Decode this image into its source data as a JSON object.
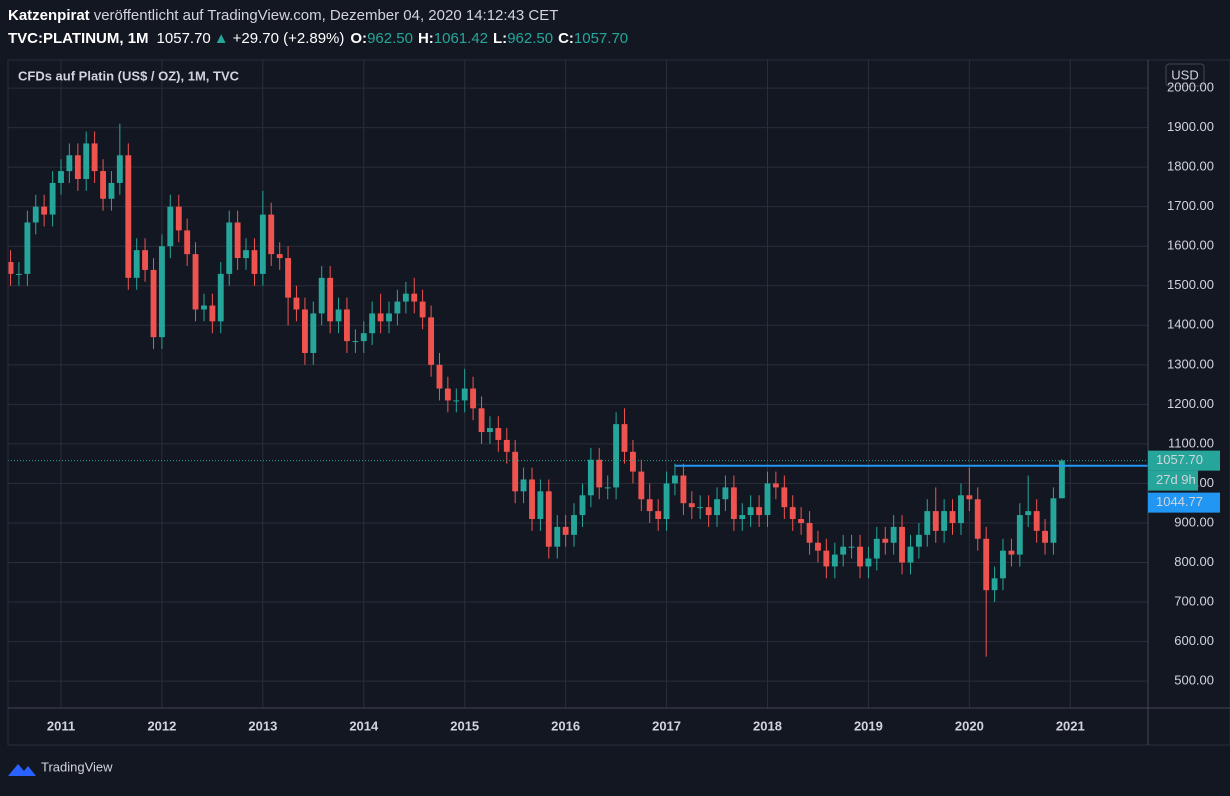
{
  "header": {
    "author": "Katzenpirat",
    "published": "veröffentlicht auf TradingView.com, Dezember 04, 2020 14:12:43 CET",
    "symbol": "TVC:PLATINUM, 1M",
    "price": "1057.70",
    "arrow": "▲",
    "change": "+29.70 (+2.89%)",
    "o_label": "O:",
    "o": "962.50",
    "h_label": "H:",
    "h": "1061.42",
    "l_label": "L:",
    "l": "962.50",
    "c_label": "C:",
    "c": "1057.70"
  },
  "footer": {
    "brand": "TradingView"
  },
  "chart_data": {
    "type": "candlestick",
    "title": "CFDs auf Platin (US$ / OZ), 1M, TVC",
    "currency": "USD",
    "up_color": "#26a69a",
    "down_color": "#ef5350",
    "grid": true,
    "xlim": [
      2010.475,
      2021.77
    ],
    "xticks": [
      2011,
      2012,
      2013,
      2014,
      2015,
      2016,
      2017,
      2018,
      2019,
      2020,
      2021
    ],
    "ylim": [
      432,
      2071
    ],
    "yticks": [
      {
        "value": 500,
        "label": "500.00"
      },
      {
        "value": 600,
        "label": "600.00"
      },
      {
        "value": 700,
        "label": "700.00"
      },
      {
        "value": 800,
        "label": "800.00"
      },
      {
        "value": 900,
        "label": "900.00"
      },
      {
        "value": 1000,
        "label": "1000.00"
      },
      {
        "value": 1100,
        "label": "1100.00"
      },
      {
        "value": 1200,
        "label": "1200.00"
      },
      {
        "value": 1300,
        "label": "1300.00"
      },
      {
        "value": 1400,
        "label": "1400.00"
      },
      {
        "value": 1500,
        "label": "1500.00"
      },
      {
        "value": 1600,
        "label": "1600.00"
      },
      {
        "value": 1700,
        "label": "1700.00"
      },
      {
        "value": 1800,
        "label": "1800.00"
      },
      {
        "value": 1900,
        "label": "1900.00"
      },
      {
        "value": 2000,
        "label": "2000.00"
      }
    ],
    "x": [
      2010.5,
      2010.583,
      2010.667,
      2010.75,
      2010.833,
      2010.917,
      2011,
      2011.083,
      2011.167,
      2011.25,
      2011.333,
      2011.417,
      2011.5,
      2011.583,
      2011.667,
      2011.75,
      2011.833,
      2011.917,
      2012,
      2012.083,
      2012.167,
      2012.25,
      2012.333,
      2012.417,
      2012.5,
      2012.583,
      2012.667,
      2012.75,
      2012.833,
      2012.917,
      2013,
      2013.083,
      2013.167,
      2013.25,
      2013.333,
      2013.417,
      2013.5,
      2013.583,
      2013.667,
      2013.75,
      2013.833,
      2013.917,
      2014,
      2014.083,
      2014.167,
      2014.25,
      2014.333,
      2014.417,
      2014.5,
      2014.583,
      2014.667,
      2014.75,
      2014.833,
      2014.917,
      2015,
      2015.083,
      2015.167,
      2015.25,
      2015.333,
      2015.417,
      2015.5,
      2015.583,
      2015.667,
      2015.75,
      2015.833,
      2015.917,
      2016,
      2016.083,
      2016.167,
      2016.25,
      2016.333,
      2016.417,
      2016.5,
      2016.583,
      2016.667,
      2016.75,
      2016.833,
      2016.917,
      2017,
      2017.083,
      2017.167,
      2017.25,
      2017.333,
      2017.417,
      2017.5,
      2017.583,
      2017.667,
      2017.75,
      2017.833,
      2017.917,
      2018,
      2018.083,
      2018.167,
      2018.25,
      2018.333,
      2018.417,
      2018.5,
      2018.583,
      2018.667,
      2018.75,
      2018.833,
      2018.917,
      2019,
      2019.083,
      2019.167,
      2019.25,
      2019.333,
      2019.417,
      2019.5,
      2019.583,
      2019.667,
      2019.75,
      2019.833,
      2019.917,
      2020,
      2020.083,
      2020.167,
      2020.25,
      2020.333,
      2020.417,
      2020.5,
      2020.583,
      2020.667,
      2020.75,
      2020.833,
      2020.917
    ],
    "open": [
      1560,
      1530,
      1530,
      1660,
      1700,
      1680,
      1760,
      1790,
      1830,
      1770,
      1860,
      1790,
      1720,
      1760,
      1830,
      1520,
      1590,
      1540,
      1370,
      1600,
      1700,
      1640,
      1580,
      1440,
      1450,
      1410,
      1530,
      1660,
      1570,
      1590,
      1530,
      1680,
      1580,
      1570,
      1470,
      1440,
      1330,
      1430,
      1520,
      1410,
      1440,
      1360,
      1360,
      1380,
      1430,
      1410,
      1430,
      1460,
      1480,
      1460,
      1420,
      1300,
      1240,
      1210,
      1210,
      1240,
      1190,
      1130,
      1140,
      1110,
      1080,
      980,
      1010,
      910,
      980,
      840,
      890,
      870,
      920,
      970,
      1060,
      990,
      990,
      1150,
      1080,
      1030,
      960,
      930,
      910,
      1000,
      1020,
      950,
      940,
      940,
      920,
      960,
      990,
      910,
      920,
      940,
      920,
      1000,
      990,
      940,
      910,
      900,
      850,
      830,
      790,
      820,
      840,
      840,
      790,
      810,
      860,
      850,
      890,
      800,
      840,
      870,
      930,
      880,
      930,
      900,
      970,
      960,
      860,
      730,
      760,
      830,
      820,
      920,
      930,
      880,
      850,
      962.5
    ],
    "high": [
      1590,
      1560,
      1690,
      1730,
      1730,
      1790,
      1820,
      1860,
      1860,
      1890,
      1890,
      1820,
      1790,
      1910,
      1860,
      1620,
      1620,
      1570,
      1630,
      1730,
      1730,
      1670,
      1610,
      1480,
      1480,
      1560,
      1690,
      1690,
      1620,
      1620,
      1740,
      1710,
      1610,
      1600,
      1500,
      1470,
      1460,
      1550,
      1550,
      1470,
      1470,
      1390,
      1410,
      1460,
      1480,
      1460,
      1490,
      1510,
      1520,
      1490,
      1450,
      1330,
      1270,
      1240,
      1290,
      1270,
      1220,
      1170,
      1170,
      1140,
      1110,
      1040,
      1040,
      1010,
      1010,
      920,
      920,
      950,
      1000,
      1090,
      1090,
      1020,
      1180,
      1190,
      1110,
      1060,
      1000,
      960,
      1030,
      1050,
      1050,
      980,
      970,
      970,
      990,
      1020,
      1020,
      950,
      970,
      970,
      1030,
      1030,
      1020,
      970,
      940,
      930,
      880,
      860,
      850,
      870,
      870,
      870,
      840,
      890,
      890,
      920,
      920,
      870,
      900,
      960,
      990,
      960,
      960,
      1000,
      1040,
      990,
      890,
      790,
      860,
      860,
      950,
      1020,
      960,
      910,
      990,
      1061.42
    ],
    "low": [
      1500,
      1500,
      1500,
      1630,
      1650,
      1650,
      1730,
      1760,
      1740,
      1740,
      1760,
      1690,
      1690,
      1730,
      1490,
      1490,
      1510,
      1340,
      1340,
      1570,
      1610,
      1550,
      1410,
      1410,
      1380,
      1380,
      1500,
      1540,
      1540,
      1500,
      1500,
      1550,
      1540,
      1400,
      1410,
      1300,
      1300,
      1400,
      1380,
      1380,
      1330,
      1330,
      1330,
      1350,
      1380,
      1380,
      1400,
      1430,
      1430,
      1390,
      1270,
      1210,
      1180,
      1180,
      1180,
      1160,
      1100,
      1100,
      1080,
      1050,
      950,
      950,
      880,
      880,
      810,
      810,
      840,
      840,
      890,
      940,
      960,
      960,
      960,
      1050,
      1000,
      930,
      900,
      880,
      880,
      970,
      920,
      910,
      910,
      890,
      890,
      930,
      880,
      880,
      890,
      890,
      890,
      960,
      910,
      880,
      870,
      820,
      800,
      760,
      760,
      790,
      810,
      760,
      760,
      780,
      820,
      820,
      770,
      770,
      810,
      840,
      850,
      850,
      870,
      870,
      930,
      830,
      562,
      700,
      730,
      790,
      790,
      890,
      850,
      820,
      820,
      962.5
    ],
    "close": [
      1530,
      1530,
      1660,
      1700,
      1680,
      1760,
      1790,
      1830,
      1770,
      1860,
      1790,
      1720,
      1760,
      1830,
      1520,
      1590,
      1540,
      1370,
      1600,
      1700,
      1640,
      1580,
      1440,
      1450,
      1410,
      1530,
      1660,
      1570,
      1590,
      1530,
      1680,
      1580,
      1570,
      1470,
      1440,
      1330,
      1430,
      1520,
      1410,
      1440,
      1360,
      1360,
      1380,
      1430,
      1410,
      1430,
      1460,
      1480,
      1460,
      1420,
      1300,
      1240,
      1210,
      1210,
      1240,
      1190,
      1130,
      1140,
      1110,
      1080,
      980,
      1010,
      910,
      980,
      840,
      890,
      870,
      920,
      970,
      1060,
      990,
      990,
      1150,
      1080,
      1030,
      960,
      930,
      910,
      1000,
      1020,
      950,
      940,
      940,
      920,
      960,
      990,
      910,
      920,
      940,
      920,
      1000,
      990,
      940,
      910,
      900,
      850,
      830,
      790,
      820,
      840,
      840,
      790,
      810,
      860,
      850,
      890,
      800,
      840,
      870,
      930,
      880,
      930,
      900,
      970,
      960,
      860,
      730,
      760,
      830,
      820,
      920,
      930,
      880,
      850,
      962.5,
      1057.7
    ],
    "last_price": {
      "value": 1057.7,
      "label": "1057.70"
    },
    "countdown": "27d 9h",
    "hline": {
      "value": 1044.77,
      "label": "1044.77",
      "start": 2017.083,
      "color": "#2196f3"
    }
  }
}
